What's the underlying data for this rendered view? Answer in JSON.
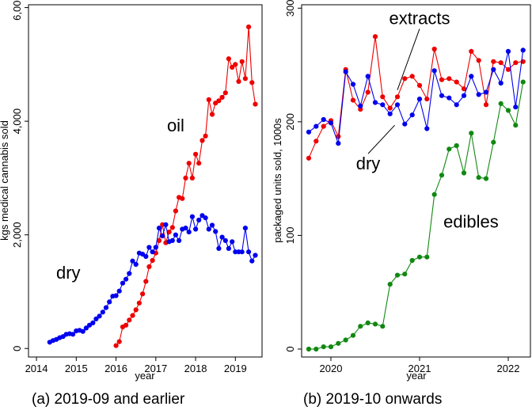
{
  "chart_data": [
    {
      "type": "line",
      "caption": "(a) 2019-09 and earlier",
      "xlabel": "year",
      "ylabel": "kgs medical cannabis sold",
      "xlim": [
        2013.8,
        2019.67
      ],
      "ylim": [
        -150,
        6050
      ],
      "xticks": [
        2014,
        2015,
        2016,
        2017,
        2018,
        2019
      ],
      "xtick_labels": [
        "2014",
        "2015",
        "2016",
        "2017",
        "2018",
        "2019"
      ],
      "yticks": [
        0,
        2000,
        4000,
        6000
      ],
      "ytick_labels": [
        "0",
        "2,000",
        "4,000",
        "6,000"
      ],
      "annotations": [
        {
          "text": "oil",
          "x": 2017.5,
          "y": 3820
        },
        {
          "text": "dry",
          "x": 2014.8,
          "y": 1230
        }
      ],
      "series": [
        {
          "name": "oil",
          "color": "#ee0000",
          "x": [
            2016.0,
            2016.083,
            2016.167,
            2016.25,
            2016.333,
            2016.417,
            2016.5,
            2016.583,
            2016.667,
            2016.75,
            2016.833,
            2016.917,
            2017.0,
            2017.083,
            2017.167,
            2017.25,
            2017.333,
            2017.417,
            2017.5,
            2017.583,
            2017.667,
            2017.75,
            2017.833,
            2017.917,
            2018.0,
            2018.083,
            2018.167,
            2018.25,
            2018.333,
            2018.417,
            2018.5,
            2018.583,
            2018.667,
            2018.75,
            2018.833,
            2018.917,
            2019.0,
            2019.083,
            2019.167,
            2019.25,
            2019.333,
            2019.417,
            2019.5
          ],
          "y": [
            50,
            120,
            380,
            410,
            500,
            580,
            680,
            800,
            960,
            1180,
            1440,
            1550,
            1680,
            1900,
            2180,
            1860,
            2050,
            2130,
            2420,
            2660,
            2640,
            3000,
            3260,
            3000,
            3420,
            3260,
            3660,
            3740,
            4380,
            4120,
            4320,
            4360,
            4420,
            4500,
            5100,
            4950,
            5000,
            4700,
            5050,
            4750,
            5660,
            4680,
            4300
          ]
        },
        {
          "name": "dry",
          "color": "#0000ee",
          "x": [
            2014.333,
            2014.417,
            2014.5,
            2014.583,
            2014.667,
            2014.75,
            2014.833,
            2014.917,
            2015.0,
            2015.083,
            2015.167,
            2015.25,
            2015.333,
            2015.417,
            2015.5,
            2015.583,
            2015.667,
            2015.75,
            2015.833,
            2015.917,
            2016.0,
            2016.083,
            2016.167,
            2016.25,
            2016.333,
            2016.417,
            2016.5,
            2016.583,
            2016.667,
            2016.75,
            2016.833,
            2016.917,
            2017.0,
            2017.083,
            2017.167,
            2017.25,
            2017.333,
            2017.417,
            2017.5,
            2017.583,
            2017.667,
            2017.75,
            2017.833,
            2017.917,
            2018.0,
            2018.083,
            2018.167,
            2018.25,
            2018.333,
            2018.417,
            2018.5,
            2018.583,
            2018.667,
            2018.75,
            2018.833,
            2018.917,
            2019.0,
            2019.083,
            2019.167,
            2019.25,
            2019.333,
            2019.417,
            2019.5
          ],
          "y": [
            110,
            140,
            160,
            190,
            210,
            250,
            260,
            250,
            310,
            320,
            300,
            360,
            410,
            450,
            520,
            570,
            640,
            720,
            820,
            920,
            930,
            1010,
            1150,
            1220,
            1320,
            1540,
            1480,
            1680,
            1660,
            1620,
            1780,
            1700,
            1780,
            2120,
            1980,
            2180,
            1880,
            1900,
            2000,
            1900,
            2100,
            2120,
            2050,
            2320,
            2100,
            2260,
            2340,
            2300,
            2100,
            2170,
            2060,
            1760,
            1960,
            1900,
            1760,
            1880,
            1700,
            1700,
            1700,
            2120,
            1700,
            1540,
            1640
          ]
        }
      ]
    },
    {
      "type": "line",
      "caption": "(b) 2019-10 onwards",
      "xlabel": "year",
      "ylabel": "packaged units sold, 1000s",
      "xlim": [
        2019.67,
        2022.25
      ],
      "ylim": [
        -7,
        303
      ],
      "xticks": [
        2020,
        2021,
        2022
      ],
      "xtick_labels": [
        "2020",
        "2021",
        "2022"
      ],
      "yticks": [
        0,
        100,
        200,
        300
      ],
      "ytick_labels": [
        "0",
        "100",
        "200",
        "300"
      ],
      "annotations": [
        {
          "text": "extracts",
          "x": 2021.0,
          "y": 286,
          "line_to": [
            2020.75,
            228
          ]
        },
        {
          "text": "dry",
          "x": 2020.42,
          "y": 158,
          "line_to": [
            2020.72,
            197
          ]
        },
        {
          "text": "edibles",
          "x": 2021.58,
          "y": 107
        }
      ],
      "series": [
        {
          "name": "extracts",
          "color": "#ee0000",
          "x": [
            2019.75,
            2019.833,
            2019.917,
            2020.0,
            2020.083,
            2020.167,
            2020.25,
            2020.333,
            2020.417,
            2020.5,
            2020.583,
            2020.667,
            2020.75,
            2020.833,
            2020.917,
            2021.0,
            2021.083,
            2021.167,
            2021.25,
            2021.333,
            2021.417,
            2021.5,
            2021.583,
            2021.667,
            2021.75,
            2021.833,
            2021.917,
            2022.0,
            2022.083,
            2022.167
          ],
          "y": [
            168,
            183,
            196,
            201,
            187,
            246,
            219,
            211,
            226,
            275,
            222,
            212,
            222,
            238,
            240,
            232,
            220,
            264,
            237,
            238,
            235,
            229,
            262,
            254,
            215,
            253,
            252,
            246,
            252,
            253
          ]
        },
        {
          "name": "dry",
          "color": "#0000ee",
          "x": [
            2019.75,
            2019.833,
            2019.917,
            2020.0,
            2020.083,
            2020.167,
            2020.25,
            2020.333,
            2020.417,
            2020.5,
            2020.583,
            2020.667,
            2020.75,
            2020.833,
            2020.917,
            2021.0,
            2021.083,
            2021.167,
            2021.25,
            2021.333,
            2021.417,
            2021.5,
            2021.583,
            2021.667,
            2021.75,
            2021.833,
            2021.917,
            2022.0,
            2022.083,
            2022.167
          ],
          "y": [
            191,
            196,
            202,
            199,
            181,
            244,
            233,
            214,
            240,
            217,
            215,
            207,
            215,
            198,
            206,
            220,
            194,
            245,
            223,
            221,
            215,
            223,
            240,
            224,
            226,
            246,
            234,
            262,
            213,
            263
          ]
        },
        {
          "name": "edibles",
          "color": "#118811",
          "x": [
            2019.75,
            2019.833,
            2019.917,
            2020.0,
            2020.083,
            2020.167,
            2020.25,
            2020.333,
            2020.417,
            2020.5,
            2020.583,
            2020.667,
            2020.75,
            2020.833,
            2020.917,
            2021.0,
            2021.083,
            2021.167,
            2021.25,
            2021.333,
            2021.417,
            2021.5,
            2021.583,
            2021.667,
            2021.75,
            2021.833,
            2021.917,
            2022.0,
            2022.083,
            2022.167
          ],
          "y": [
            0,
            0,
            2,
            2,
            5,
            8,
            12,
            20,
            23,
            22,
            20,
            57,
            65,
            66,
            78,
            81,
            81,
            136,
            153,
            176,
            179,
            155,
            190,
            151,
            150,
            182,
            216,
            210,
            197,
            235
          ]
        }
      ]
    }
  ]
}
